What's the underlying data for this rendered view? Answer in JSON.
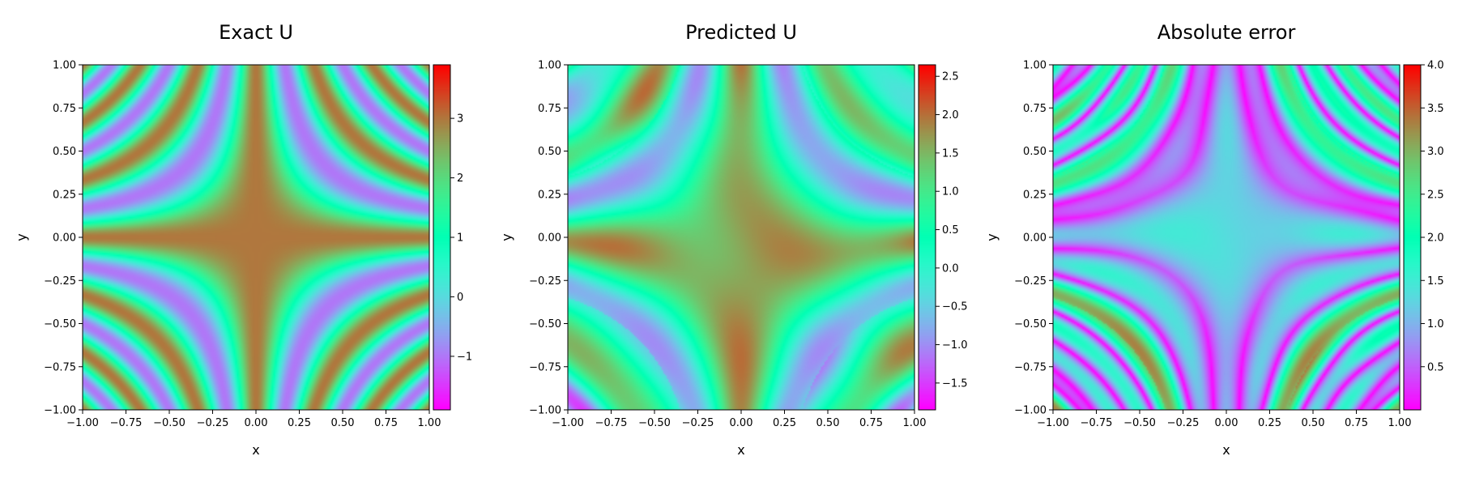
{
  "chart_data": [
    {
      "type": "heatmap",
      "title": "Exact U",
      "xlabel": "x",
      "ylabel": "y",
      "xlim": [
        -1.0,
        1.0
      ],
      "ylim": [
        -1.0,
        1.0
      ],
      "x_ticks": [
        "−1.00",
        "−0.75",
        "−0.50",
        "−0.25",
        "0.00",
        "0.25",
        "0.50",
        "0.75",
        "1.00"
      ],
      "y_ticks": [
        "−1.00",
        "−0.75",
        "−0.50",
        "−0.25",
        "0.00",
        "0.25",
        "0.50",
        "0.75",
        "1.00"
      ],
      "colormap": "rainbow",
      "colorbar": {
        "range": [
          -1.9,
          3.9
        ],
        "ticks": [
          -1,
          0,
          1,
          2,
          3
        ],
        "tick_labels": [
          "−1",
          "0",
          "1",
          "2",
          "3"
        ]
      },
      "field": "exact"
    },
    {
      "type": "heatmap",
      "title": "Predicted U",
      "xlabel": "x",
      "ylabel": "y",
      "xlim": [
        -1.0,
        1.0
      ],
      "ylim": [
        -1.0,
        1.0
      ],
      "x_ticks": [
        "−1.00",
        "−0.75",
        "−0.50",
        "−0.25",
        "0.00",
        "0.25",
        "0.50",
        "0.75",
        "1.00"
      ],
      "y_ticks": [
        "−1.00",
        "−0.75",
        "−0.50",
        "−0.25",
        "0.00",
        "0.25",
        "0.50",
        "0.75",
        "1.00"
      ],
      "colormap": "rainbow",
      "colorbar": {
        "range": [
          -1.85,
          2.65
        ],
        "ticks": [
          -1.5,
          -1.0,
          -0.5,
          0.0,
          0.5,
          1.0,
          1.5,
          2.0,
          2.5
        ],
        "tick_labels": [
          "−1.5",
          "−1.0",
          "−0.5",
          "0.0",
          "0.5",
          "1.0",
          "1.5",
          "2.0",
          "2.5"
        ]
      },
      "field": "predicted"
    },
    {
      "type": "heatmap",
      "title": "Absolute error",
      "xlabel": "x",
      "ylabel": "y",
      "xlim": [
        -1.0,
        1.0
      ],
      "ylim": [
        -1.0,
        1.0
      ],
      "x_ticks": [
        "−1.00",
        "−0.75",
        "−0.50",
        "−0.25",
        "0.00",
        "0.25",
        "0.50",
        "0.75",
        "1.00"
      ],
      "y_ticks": [
        "−1.00",
        "−0.75",
        "−0.50",
        "−0.25",
        "0.00",
        "0.25",
        "0.50",
        "0.75",
        "1.00"
      ],
      "colormap": "rainbow",
      "colorbar": {
        "range": [
          0.0,
          4.0
        ],
        "ticks": [
          0.5,
          1.0,
          1.5,
          2.0,
          2.5,
          3.0,
          3.5,
          4.0
        ],
        "tick_labels": [
          "0.5",
          "1.0",
          "1.5",
          "2.0",
          "2.5",
          "3.0",
          "3.5",
          "4.0"
        ]
      },
      "field": "error"
    }
  ]
}
